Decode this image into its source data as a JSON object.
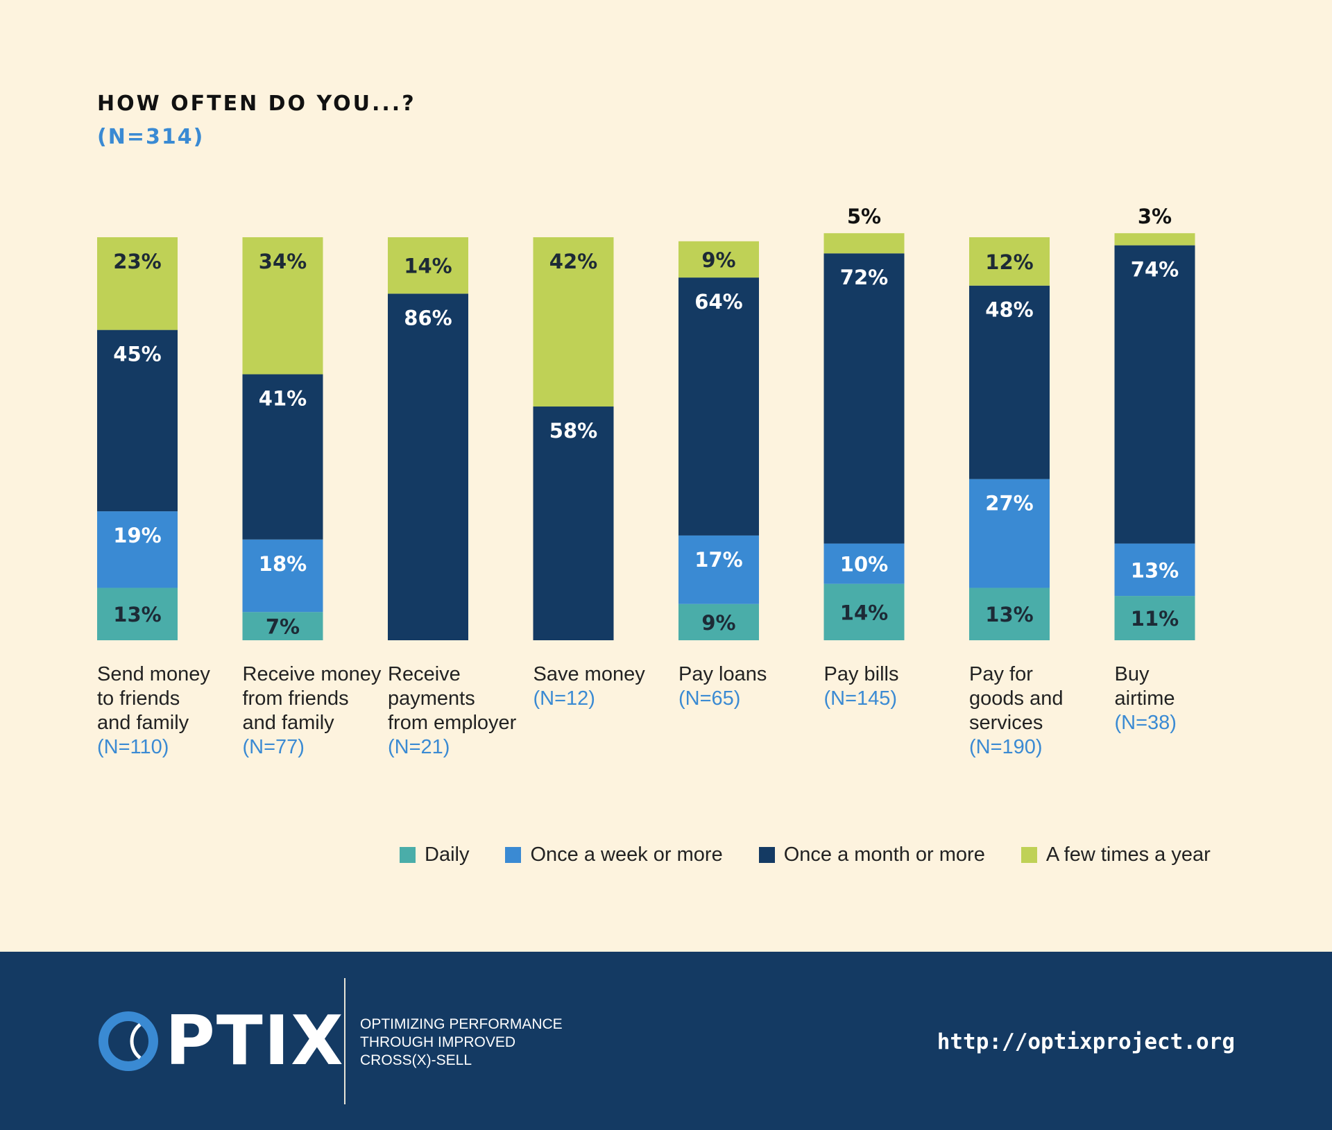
{
  "colors": {
    "background": "#fdf3de",
    "footer": "#143a63",
    "accent": "#3a8ad3",
    "daily": "#4aada9",
    "weekly": "#3a8ad3",
    "monthly": "#143a63",
    "yearly": "#bfd156"
  },
  "chart_data": {
    "type": "bar",
    "stacked": true,
    "title": "HOW OFTEN DO YOU...?",
    "subtitle": "(N=314)",
    "categories": [
      "Send money to friends and family",
      "Receive money from friends and family",
      "Receive payments from employer",
      "Save money",
      "Pay loans",
      "Pay bills",
      "Pay for goods and services",
      "Buy airtime"
    ],
    "category_lines": [
      [
        "Send money",
        "to friends",
        "and family"
      ],
      [
        "Receive money",
        "from friends",
        "and family"
      ],
      [
        "Receive",
        "payments",
        "from employer"
      ],
      [
        "Save money"
      ],
      [
        "Pay loans"
      ],
      [
        "Pay bills"
      ],
      [
        "Pay for",
        "goods and",
        "services"
      ],
      [
        "Buy",
        "airtime"
      ]
    ],
    "category_n": [
      "(N=110)",
      "(N=77)",
      "(N=21)",
      "(N=12)",
      "(N=65)",
      "(N=145)",
      "(N=190)",
      "(N=38)"
    ],
    "series": [
      {
        "name": "Daily",
        "color": "#4aada9",
        "label_color": "#1d2a36",
        "values": [
          13,
          7,
          0,
          0,
          9,
          14,
          13,
          11
        ]
      },
      {
        "name": "Once a week or more",
        "color": "#3a8ad3",
        "label_color": "#ffffff",
        "values": [
          19,
          18,
          0,
          0,
          17,
          10,
          27,
          13
        ]
      },
      {
        "name": "Once a month or more",
        "color": "#143a63",
        "label_color": "#ffffff",
        "values": [
          45,
          41,
          86,
          58,
          64,
          72,
          48,
          74
        ]
      },
      {
        "name": "A few times a year",
        "color": "#bfd156",
        "label_color": "#1d2a36",
        "values": [
          23,
          34,
          14,
          42,
          9,
          5,
          12,
          3
        ]
      }
    ],
    "ylim": [
      0,
      100
    ],
    "grid": false,
    "legend_position": "bottom-right"
  },
  "footer": {
    "logo_text": "PTIX",
    "tagline": [
      "OPTIMIZING PERFORMANCE",
      "THROUGH IMPROVED",
      "CROSS(X)-SELL"
    ],
    "url": "http://optixproject.org"
  }
}
